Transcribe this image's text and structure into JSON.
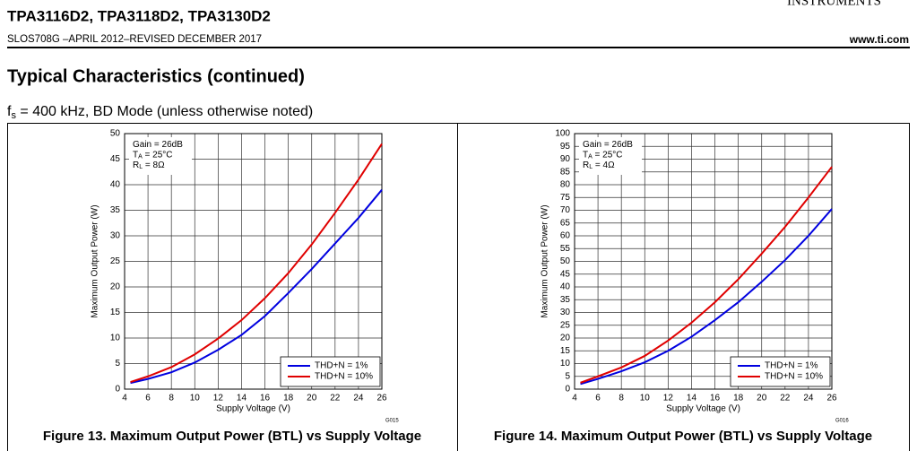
{
  "header": {
    "title": "TPA3116D2, TPA3118D2, TPA3130D2",
    "doc": "SLOS708G –APRIL 2012–REVISED DECEMBER 2017",
    "site": "www.ti.com",
    "brand": "INSTRUMENTS"
  },
  "section": {
    "title": "Typical Characteristics (continued)",
    "conditions": [
      "f",
      "s",
      " = 400 kHz, BD Mode (unless otherwise noted)"
    ]
  },
  "chart_data": [
    {
      "type": "line",
      "title": "Figure 13. Maximum Output Power (BTL) vs Supply Voltage",
      "code": "G015",
      "x_label": "Supply Voltage (V)",
      "y_label": "Maximum Output Power (W)",
      "annotations": [
        [
          "Gain = 26dB"
        ],
        [
          "T",
          "A",
          " = 25°C"
        ],
        [
          "R",
          "L",
          " = 8Ω"
        ]
      ],
      "x": [
        4.5,
        6,
        8,
        10,
        12,
        14,
        16,
        18,
        20,
        22,
        24,
        26
      ],
      "series": [
        {
          "name": "THD+N = 1%",
          "color": "#0000e0",
          "values": [
            1.2,
            2,
            3.3,
            5.2,
            7.7,
            10.6,
            14.3,
            18.8,
            23.5,
            28.5,
            33.5,
            39
          ]
        },
        {
          "name": "THD+N = 10%",
          "color": "#e00000",
          "values": [
            1.4,
            2.5,
            4.3,
            6.8,
            9.9,
            13.5,
            17.8,
            22.7,
            28.3,
            34.5,
            41,
            48
          ]
        }
      ],
      "xlim": [
        4,
        26
      ],
      "xticks": [
        4,
        6,
        8,
        10,
        12,
        14,
        16,
        18,
        20,
        22,
        24,
        26
      ],
      "ylim": [
        0,
        50
      ],
      "yticks": [
        0,
        5,
        10,
        15,
        20,
        25,
        30,
        35,
        40,
        45,
        50
      ],
      "grid": true,
      "legend": "lower-right"
    },
    {
      "type": "line",
      "title": "Figure 14. Maximum Output Power (BTL) vs Supply Voltage",
      "code": "G016",
      "x_label": "Supply Voltage (V)",
      "y_label": "Maximum Output Power (W)",
      "annotations": [
        [
          "Gain = 26dB"
        ],
        [
          "T",
          "A",
          " = 25°C"
        ],
        [
          "R",
          "L",
          " = 4Ω"
        ]
      ],
      "x": [
        4.5,
        6,
        8,
        10,
        12,
        14,
        16,
        18,
        20,
        22,
        24,
        26
      ],
      "series": [
        {
          "name": "THD+N = 1%",
          "color": "#0000e0",
          "values": [
            2,
            4,
            7,
            10.5,
            15,
            20.5,
            27,
            34,
            42,
            50.5,
            60,
            70.5
          ]
        },
        {
          "name": "THD+N = 10%",
          "color": "#e00000",
          "values": [
            2.5,
            5,
            8.5,
            13,
            19,
            26,
            34,
            43,
            53,
            63.5,
            75,
            87
          ]
        }
      ],
      "xlim": [
        4,
        26
      ],
      "xticks": [
        4,
        6,
        8,
        10,
        12,
        14,
        16,
        18,
        20,
        22,
        24,
        26
      ],
      "ylim": [
        0,
        100
      ],
      "yticks": [
        0,
        5,
        10,
        15,
        20,
        25,
        30,
        35,
        40,
        45,
        50,
        55,
        60,
        65,
        70,
        75,
        80,
        85,
        90,
        95,
        100
      ],
      "grid": true,
      "legend": "lower-right"
    }
  ]
}
